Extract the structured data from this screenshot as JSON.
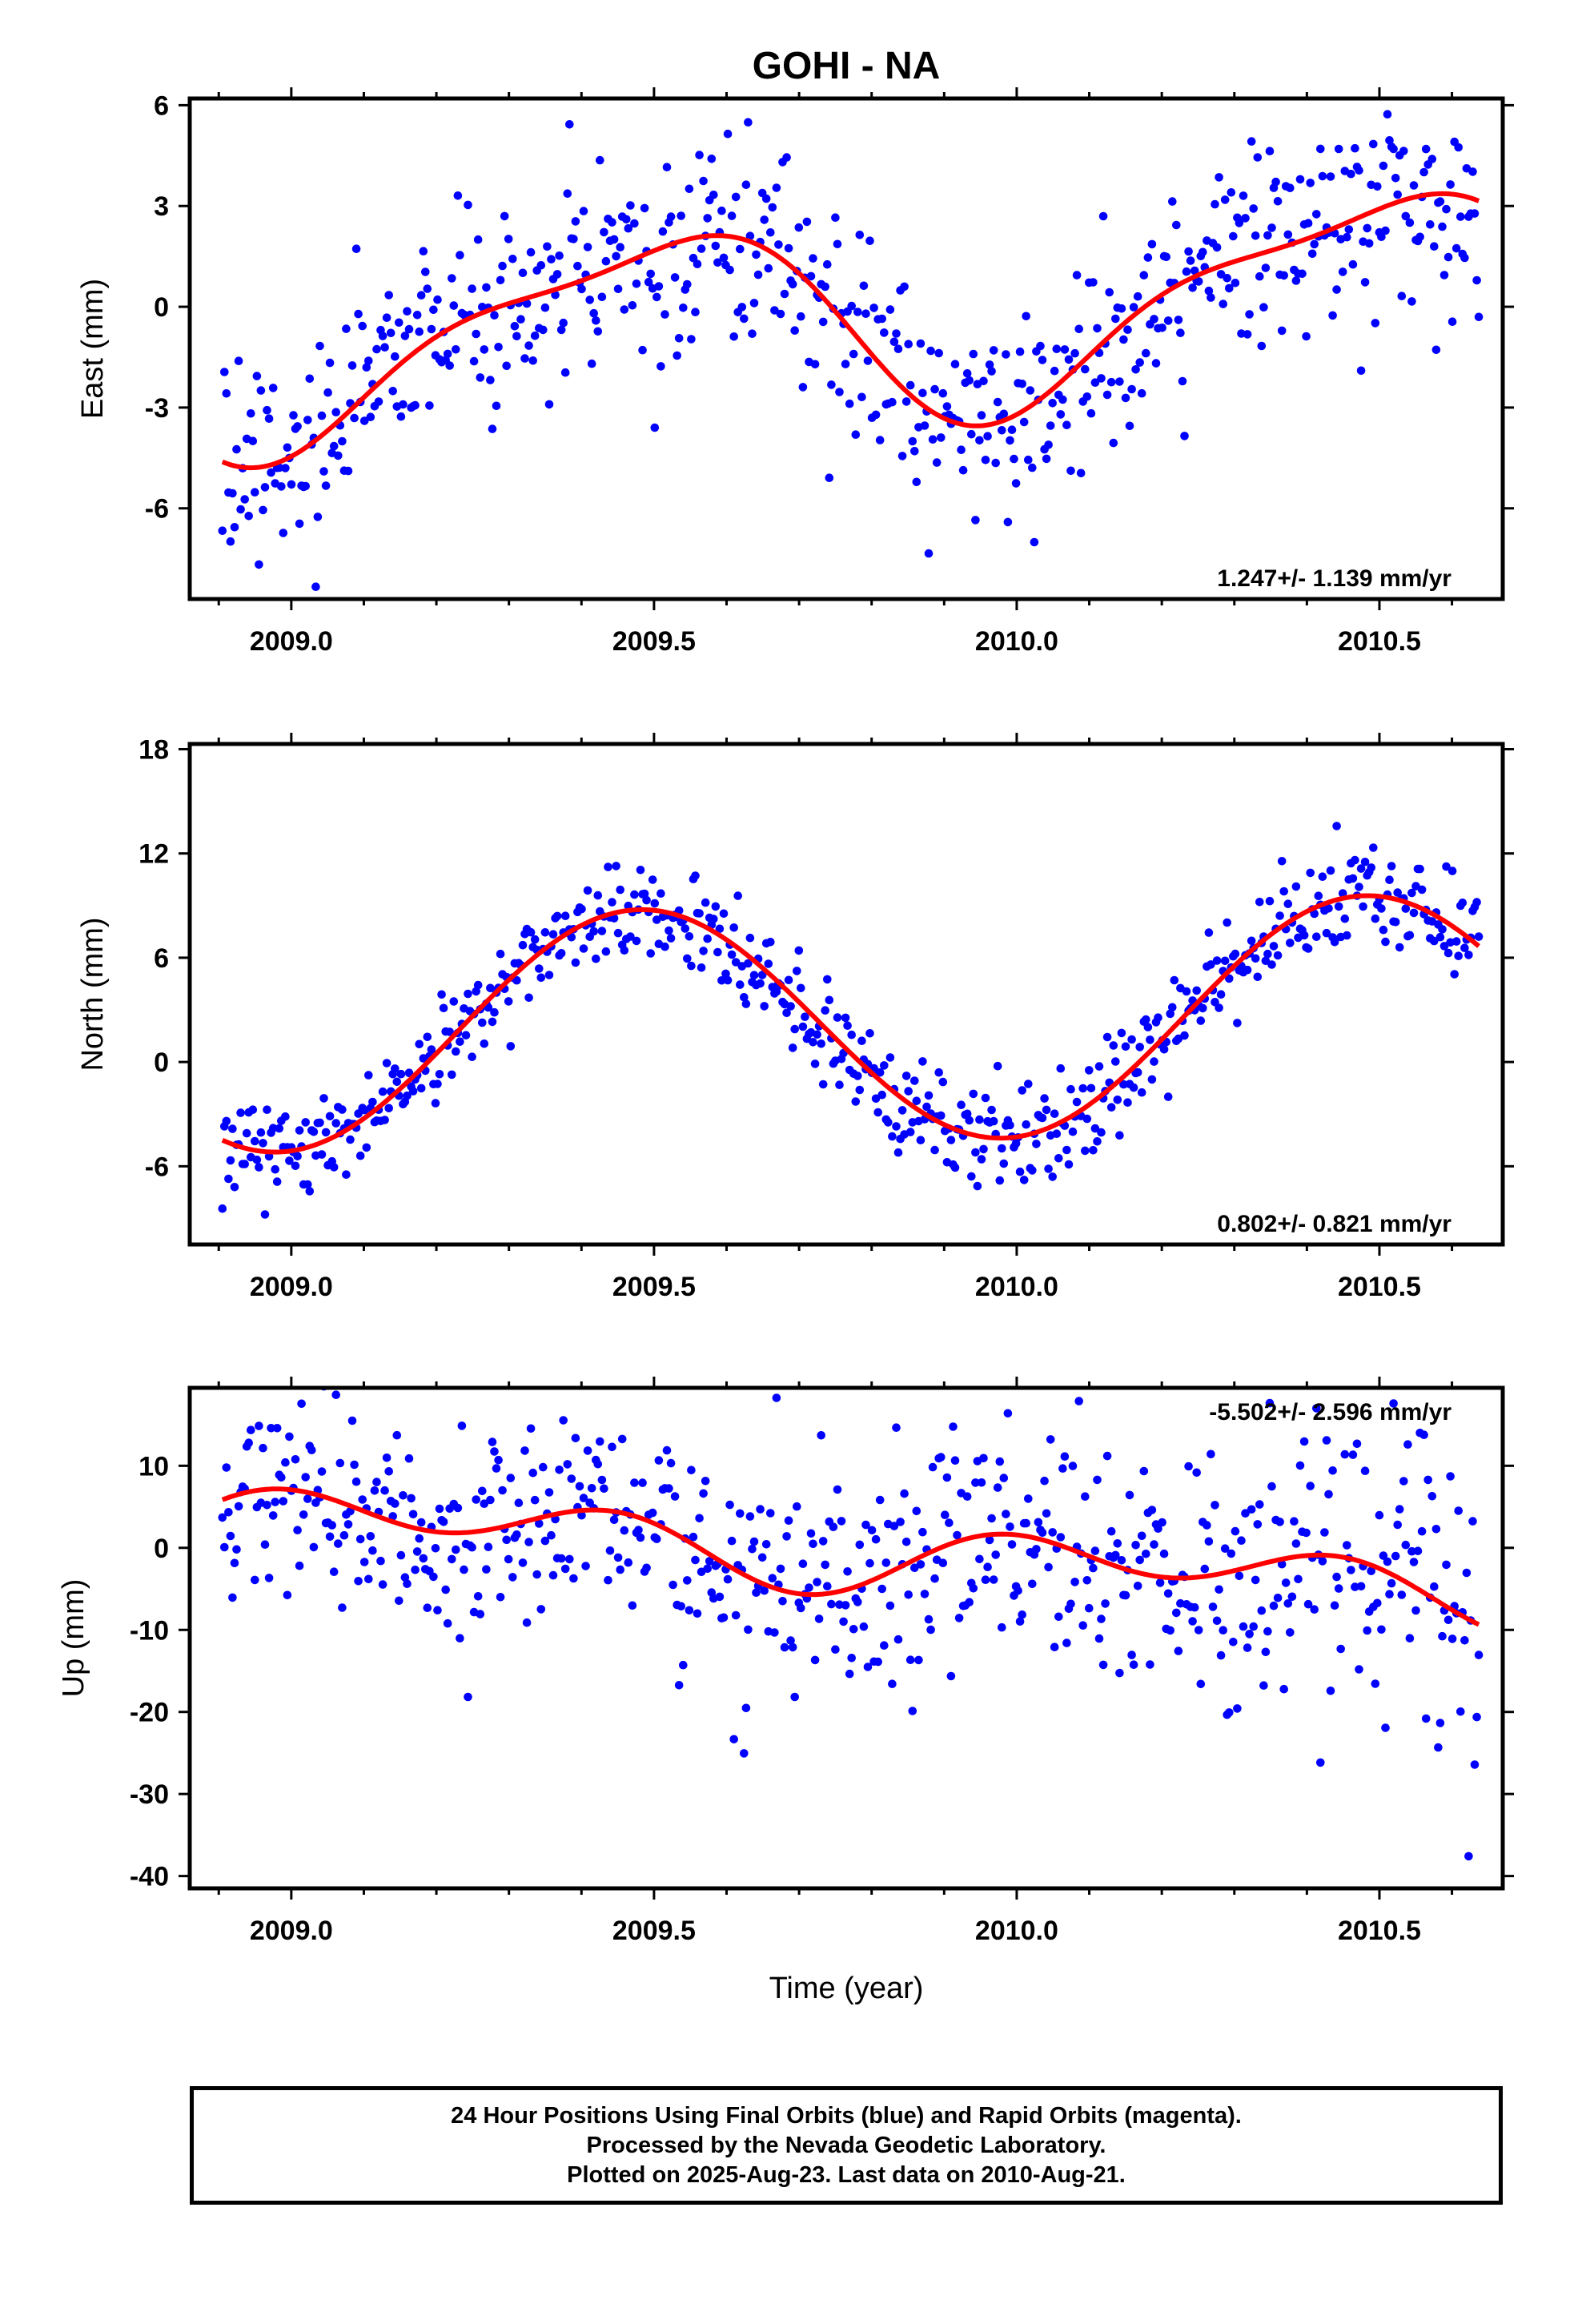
{
  "title": "GOHI - NA",
  "xlabel": "Time (year)",
  "caption": {
    "line1": "24 Hour Positions Using Final Orbits (blue) and Rapid Orbits (magenta).",
    "line2": "Processed by the Nevada Geodetic Laboratory.",
    "line3": "Plotted on 2025-Aug-23. Last data on 2010-Aug-21."
  },
  "colors": {
    "final_orbits": "#0000ff",
    "model": "#ff0000",
    "frame": "#000000"
  },
  "chart_data": [
    {
      "type": "scatter",
      "ylabel": "East (mm)",
      "rate": "1.247+/- 1.139 mm/yr",
      "rate_position": "bottom-right",
      "xlim": [
        2008.86,
        2010.67
      ],
      "ylim": [
        -8.7,
        6.2
      ],
      "xticks": [
        2009.0,
        2009.5,
        2010.0,
        2010.5
      ],
      "xtick_labels": [
        "2009.0",
        "2009.5",
        "2010.0",
        "2010.5"
      ],
      "yticks": [
        -6,
        -3,
        0,
        3,
        6
      ],
      "ytick_labels": [
        "-6",
        "-3",
        "0",
        "3",
        "6"
      ],
      "model": {
        "mean": -0.34,
        "trend": 1.247,
        "annual_sin": 0.23,
        "annual_cos": -2.75,
        "semi_sin": 0.71,
        "semi_cos": -0.43
      },
      "noise_sd": 1.6,
      "series": [
        {
          "values_source": "daily positions, final orbits"
        }
      ]
    },
    {
      "type": "scatter",
      "ylabel": "North (mm)",
      "rate": "0.802+/- 0.821 mm/yr",
      "rate_position": "bottom-right",
      "xlim": [
        2008.86,
        2010.67
      ],
      "ylim": [
        -10.5,
        18.3
      ],
      "xticks": [
        2009.0,
        2009.5,
        2010.0,
        2010.5
      ],
      "xtick_labels": [
        "2009.0",
        "2009.5",
        "2010.0",
        "2010.5"
      ],
      "yticks": [
        -6,
        0,
        6,
        12,
        18
      ],
      "ytick_labels": [
        "-6",
        "0",
        "6",
        "12",
        "18"
      ],
      "model": {
        "mean": 2.21,
        "trend": 0.802,
        "annual_sin": 0.84,
        "annual_cos": -6.72,
        "semi_sin": 0.0,
        "semi_cos": 0.0
      },
      "noise_sd": 1.4,
      "series": [
        {
          "values_source": "daily positions, final orbits"
        }
      ]
    },
    {
      "type": "scatter",
      "ylabel": "Up (mm)",
      "rate": "-5.502+/- 2.596 mm/yr",
      "rate_position": "top-right",
      "xlim": [
        2008.86,
        2010.67
      ],
      "ylim": [
        -41.5,
        19.5
      ],
      "xticks": [
        2009.0,
        2009.5,
        2010.0,
        2010.5
      ],
      "xtick_labels": [
        "2009.0",
        "2009.5",
        "2010.0",
        "2010.5"
      ],
      "yticks": [
        -40,
        -30,
        -20,
        -10,
        0,
        10
      ],
      "ytick_labels": [
        "-40",
        "-30",
        "-20",
        "-10",
        "0",
        "10"
      ],
      "model": {
        "mean": -0.42,
        "trend": -5.502,
        "annual_sin": 2.3,
        "annual_cos": 0.67,
        "semi_sin": -1.48,
        "semi_cos": 2.7
      },
      "noise_sd": 7.0,
      "series": [
        {
          "values_source": "daily positions, final orbits"
        }
      ]
    }
  ]
}
